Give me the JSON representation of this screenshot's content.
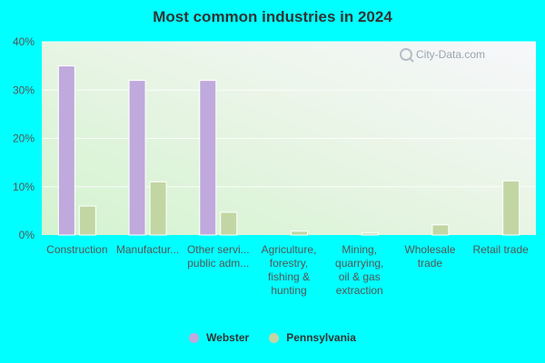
{
  "chart_data": {
    "type": "bar",
    "title": "Most common industries in 2024",
    "xlabel": "",
    "ylabel": "",
    "ylim": [
      0,
      40
    ],
    "yticks": [
      "0%",
      "10%",
      "20%",
      "30%",
      "40%"
    ],
    "categories": [
      [
        "Construction"
      ],
      [
        "Manufactur..."
      ],
      [
        "Other servi...",
        "public adm..."
      ],
      [
        "Agriculture,",
        "forestry,",
        "fishing &",
        "hunting"
      ],
      [
        "Mining,",
        "quarrying,",
        "oil & gas",
        "extraction"
      ],
      [
        "Wholesale",
        "trade"
      ],
      [
        "Retail trade"
      ]
    ],
    "series": [
      {
        "name": "Webster",
        "color": "#c0a9dc",
        "values": [
          35,
          32,
          32,
          0,
          0,
          0,
          0
        ]
      },
      {
        "name": "Pennsylvania",
        "color": "#c2d6a4",
        "values": [
          6,
          11,
          4.7,
          0.8,
          0.4,
          2.1,
          11.2
        ]
      }
    ],
    "grid": true,
    "legend_position": "bottom",
    "watermark": "City-Data.com"
  }
}
